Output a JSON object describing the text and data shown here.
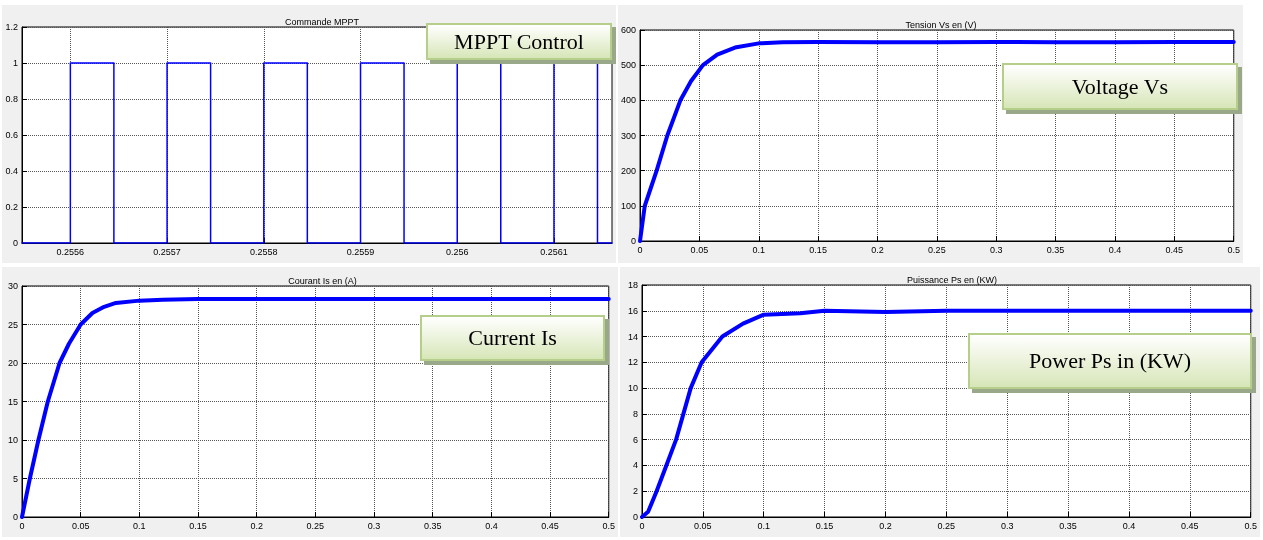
{
  "chart_data": [
    {
      "type": "line",
      "title": "Commande MPPT",
      "annotations": [
        "MPPT Control"
      ],
      "xlim": [
        0.25555,
        0.25616
      ],
      "ylim": [
        0,
        1.2
      ],
      "xticks": [
        0.2556,
        0.2557,
        0.2558,
        0.2559,
        0.256,
        0.2561
      ],
      "yticks": [
        0,
        0.2,
        0.4,
        0.6,
        0.8,
        1,
        1.2
      ],
      "grid": true,
      "marker": "none",
      "line_style": "solid",
      "x": [
        0.25555,
        0.2556,
        0.2556,
        0.255645,
        0.255645,
        0.2557,
        0.2557,
        0.255745,
        0.255745,
        0.2558,
        0.2558,
        0.255845,
        0.255845,
        0.2559,
        0.2559,
        0.255945,
        0.255945,
        0.256,
        0.256,
        0.256045,
        0.256045,
        0.2561,
        0.2561,
        0.256145,
        0.256145,
        0.25616
      ],
      "series": [
        {
          "color": "#0000ff",
          "values": [
            0,
            0,
            1,
            1,
            0,
            0,
            1,
            1,
            0,
            0,
            1,
            1,
            0,
            0,
            1,
            1,
            0,
            0,
            1,
            1,
            0,
            0,
            1,
            1,
            0,
            0
          ]
        }
      ]
    },
    {
      "type": "line",
      "title": "Tension Vs en (V)",
      "annotations": [
        "Voltage  Vs"
      ],
      "xlim": [
        0,
        0.5
      ],
      "ylim": [
        0,
        600
      ],
      "xticks": [
        0,
        0.05,
        0.1,
        0.15,
        0.2,
        0.25,
        0.3,
        0.35,
        0.4,
        0.45,
        0.5
      ],
      "yticks": [
        0,
        100,
        200,
        300,
        400,
        500,
        600
      ],
      "grid": true,
      "marker": "none",
      "line_style": "solid",
      "x": [
        0,
        0.004,
        0.009,
        0.014,
        0.023,
        0.034,
        0.043,
        0.053,
        0.065,
        0.08,
        0.1,
        0.12,
        0.15,
        0.2,
        0.25,
        0.3,
        0.35,
        0.4,
        0.45,
        0.5
      ],
      "series": [
        {
          "color": "#0000ff",
          "values": [
            0,
            100,
            150,
            200,
            300,
            400,
            455,
            500,
            530,
            550,
            562,
            565,
            566,
            565,
            565,
            566,
            565,
            565,
            566,
            566
          ]
        }
      ]
    },
    {
      "type": "line",
      "title": "Courant Is en (A)",
      "annotations": [
        "Current  Is"
      ],
      "xlim": [
        0,
        0.5
      ],
      "ylim": [
        0,
        30
      ],
      "xticks": [
        0,
        0.05,
        0.1,
        0.15,
        0.2,
        0.25,
        0.3,
        0.35,
        0.4,
        0.45,
        0.5
      ],
      "yticks": [
        0,
        5,
        10,
        15,
        20,
        25,
        30
      ],
      "grid": true,
      "marker": "none",
      "line_style": "solid",
      "x": [
        0,
        0.0067,
        0.014,
        0.022,
        0.032,
        0.04,
        0.05,
        0.06,
        0.07,
        0.08,
        0.1,
        0.12,
        0.15,
        0.2,
        0.25,
        0.3,
        0.35,
        0.4,
        0.45,
        0.5
      ],
      "series": [
        {
          "color": "#0000ff",
          "values": [
            0,
            5,
            10,
            15,
            20,
            22.5,
            25,
            26.5,
            27.3,
            27.8,
            28.1,
            28.2,
            28.3,
            28.3,
            28.3,
            28.3,
            28.3,
            28.3,
            28.3,
            28.3
          ]
        }
      ]
    },
    {
      "type": "line",
      "title": "Puissance Ps en (KW)",
      "annotations": [
        "Power Ps in (KW)"
      ],
      "xlim": [
        0,
        0.5
      ],
      "ylim": [
        0,
        18
      ],
      "xticks": [
        0,
        0.05,
        0.1,
        0.15,
        0.2,
        0.25,
        0.3,
        0.35,
        0.4,
        0.45,
        0.5
      ],
      "yticks": [
        0,
        2,
        4,
        6,
        8,
        10,
        12,
        14,
        16,
        18
      ],
      "grid": true,
      "marker": "none",
      "line_style": "solid",
      "x": [
        0,
        0.005,
        0.012,
        0.02,
        0.028,
        0.034,
        0.04,
        0.049,
        0.066,
        0.083,
        0.1,
        0.13,
        0.15,
        0.2,
        0.25,
        0.3,
        0.35,
        0.4,
        0.45,
        0.5
      ],
      "series": [
        {
          "color": "#0000ff",
          "values": [
            0,
            0.4,
            2,
            4,
            6,
            8,
            10,
            12,
            14,
            15,
            15.7,
            15.8,
            16,
            15.9,
            16,
            16,
            16,
            16,
            16,
            16
          ]
        }
      ]
    }
  ]
}
